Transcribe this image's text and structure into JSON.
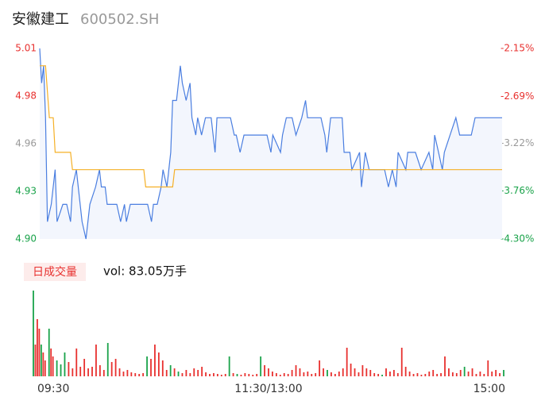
{
  "header": {
    "name": "安徽建工",
    "code": "600502.SH"
  },
  "chart_data": [
    {
      "type": "line",
      "xlim": [
        0,
        240
      ],
      "ylim": [
        4.9,
        5.01
      ],
      "yticks": [
        {
          "value": 4.9,
          "label": "4.90"
        },
        {
          "value": 4.9275,
          "label": "4.93"
        },
        {
          "value": 4.955,
          "label": "4.96"
        },
        {
          "value": 4.9825,
          "label": "4.98"
        },
        5.01
      ],
      "y2lim": [
        -4.3,
        -2.15
      ],
      "y2ticks": [
        {
          "value": -4.3,
          "label": "-4.30%"
        },
        {
          "value": -3.76,
          "label": "-3.76%"
        },
        {
          "value": -3.22,
          "label": "-3.22%"
        },
        {
          "value": -2.69,
          "label": "-2.69%"
        },
        {
          "value": -2.15,
          "label": "-2.15%"
        }
      ],
      "tick_colors": [
        "#1aa34a",
        "#1aa34a",
        "#999999",
        "#e8312f",
        "#e8312f"
      ],
      "series": [
        {
          "color": "#4a7ee0",
          "fill": "#f3f6fd",
          "x": [
            0,
            1,
            2,
            3,
            4,
            6,
            8,
            9,
            12,
            14,
            16,
            17,
            19,
            21,
            22,
            24,
            26,
            29,
            31,
            32,
            34,
            35,
            40,
            42,
            44,
            45,
            47,
            56,
            58,
            59,
            61,
            63,
            64,
            66,
            68,
            69,
            71,
            73,
            74,
            76,
            78,
            79,
            81,
            82,
            84,
            86,
            89,
            91,
            92,
            99,
            101,
            102,
            104,
            106,
            118,
            120,
            121,
            125,
            126,
            128,
            131,
            133,
            136,
            138,
            139,
            146,
            148,
            149,
            151,
            157,
            158,
            161,
            162,
            166,
            167,
            169,
            171,
            179,
            181,
            183,
            185,
            186,
            190,
            191,
            195,
            198,
            202,
            204,
            205,
            207,
            209,
            210,
            213,
            216,
            218,
            224,
            226,
            240
          ],
          "values": [
            5.01,
            4.99,
            5.0,
            4.97,
            4.91,
            4.92,
            4.94,
            4.91,
            4.92,
            4.92,
            4.91,
            4.93,
            4.94,
            4.92,
            4.91,
            4.9,
            4.92,
            4.93,
            4.94,
            4.93,
            4.93,
            4.92,
            4.92,
            4.91,
            4.92,
            4.91,
            4.92,
            4.92,
            4.91,
            4.92,
            4.92,
            4.93,
            4.94,
            4.93,
            4.95,
            4.98,
            4.98,
            5.0,
            4.99,
            4.98,
            4.99,
            4.97,
            4.96,
            4.97,
            4.96,
            4.97,
            4.97,
            4.95,
            4.97,
            4.97,
            4.96,
            4.96,
            4.95,
            4.96,
            4.96,
            4.95,
            4.96,
            4.95,
            4.96,
            4.97,
            4.97,
            4.96,
            4.97,
            4.98,
            4.97,
            4.97,
            4.96,
            4.95,
            4.97,
            4.97,
            4.95,
            4.95,
            4.94,
            4.95,
            4.93,
            4.95,
            4.94,
            4.94,
            4.93,
            4.94,
            4.93,
            4.95,
            4.94,
            4.95,
            4.95,
            4.94,
            4.95,
            4.94,
            4.96,
            4.95,
            4.94,
            4.95,
            4.96,
            4.97,
            4.96,
            4.96,
            4.97,
            4.97
          ]
        },
        {
          "color": "#f5b026",
          "x": [
            0,
            3,
            5,
            7,
            8,
            16,
            17,
            54,
            55,
            69,
            70,
            240
          ],
          "values": [
            5.0,
            5.0,
            4.97,
            4.97,
            4.95,
            4.95,
            4.94,
            4.94,
            4.93,
            4.93,
            4.94,
            4.94
          ]
        }
      ]
    },
    {
      "type": "bar",
      "label": "日成交量",
      "summary": "vol: 83.05万手",
      "xlim": [
        0,
        240
      ],
      "ylim": [
        0,
        1.08
      ],
      "xticks": [
        {
          "value": 0,
          "label": "09:30"
        },
        {
          "value": 120,
          "label": "11:30/13:00"
        },
        {
          "value": 240,
          "label": "15:00"
        }
      ],
      "series": [
        {
          "color": "#e8312f",
          "x": [
            1,
            2,
            3,
            5,
            6,
            9,
            10,
            18,
            20,
            22,
            24,
            26,
            28,
            30,
            32,
            34,
            36,
            40,
            42,
            44,
            46,
            48,
            50,
            52,
            54,
            56,
            60,
            62,
            64,
            66,
            68,
            72,
            76,
            78,
            80,
            82,
            84,
            86,
            88,
            90,
            92,
            94,
            96,
            98,
            102,
            106,
            108,
            110,
            112,
            114,
            118,
            120,
            122,
            124,
            126,
            128,
            130,
            132,
            134,
            136,
            138,
            140,
            142,
            144,
            146,
            148,
            152,
            154,
            156,
            158,
            160,
            162,
            164,
            166,
            168,
            170,
            172,
            174,
            176,
            180,
            182,
            184,
            186,
            188,
            190,
            192,
            194,
            196,
            198,
            200,
            202,
            204,
            206,
            208,
            210,
            212,
            214,
            216,
            218,
            222,
            224,
            226,
            228,
            230,
            232,
            234,
            236,
            238
          ],
          "values": [
            0.4,
            0.72,
            0.6,
            0.3,
            0.2,
            0.35,
            0.25,
            0.18,
            0.1,
            0.35,
            0.12,
            0.22,
            0.1,
            0.12,
            0.4,
            0.14,
            0.08,
            0.18,
            0.22,
            0.1,
            0.06,
            0.08,
            0.05,
            0.04,
            0.03,
            0.04,
            0.22,
            0.4,
            0.3,
            0.2,
            0.08,
            0.1,
            0.04,
            0.08,
            0.04,
            0.1,
            0.08,
            0.12,
            0.05,
            0.03,
            0.04,
            0.03,
            0.02,
            0.03,
            0.04,
            0.02,
            0.04,
            0.03,
            0.02,
            0.03,
            0.14,
            0.1,
            0.06,
            0.04,
            0.02,
            0.04,
            0.03,
            0.08,
            0.14,
            0.1,
            0.05,
            0.06,
            0.03,
            0.04,
            0.2,
            0.1,
            0.05,
            0.03,
            0.06,
            0.1,
            0.36,
            0.16,
            0.1,
            0.05,
            0.14,
            0.1,
            0.08,
            0.04,
            0.03,
            0.1,
            0.06,
            0.08,
            0.04,
            0.36,
            0.12,
            0.06,
            0.03,
            0.04,
            0.02,
            0.03,
            0.06,
            0.08,
            0.03,
            0.04,
            0.25,
            0.1,
            0.05,
            0.04,
            0.08,
            0.06,
            0.1,
            0.03,
            0.06,
            0.03,
            0.2,
            0.06,
            0.08,
            0.04
          ]
        },
        {
          "color": "#1aa34a",
          "x": [
            0,
            4,
            8,
            12,
            14,
            16,
            38,
            58,
            70,
            74,
            100,
            104,
            116,
            150,
            178,
            220,
            240
          ],
          "values": [
            1.08,
            0.4,
            0.6,
            0.2,
            0.15,
            0.3,
            0.42,
            0.25,
            0.14,
            0.06,
            0.25,
            0.03,
            0.25,
            0.08,
            0.02,
            0.12,
            0.08
          ]
        }
      ]
    }
  ]
}
